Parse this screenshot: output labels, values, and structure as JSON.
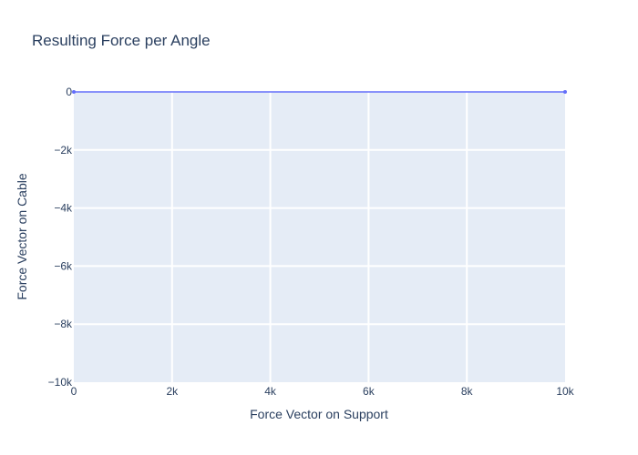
{
  "chart_data": {
    "type": "line",
    "title": "Resulting Force per Angle",
    "xlabel": "Force Vector on Support",
    "ylabel": "Force Vector on Cable",
    "xlim": [
      0,
      10000
    ],
    "ylim": [
      -10000,
      0
    ],
    "x_ticks": [
      {
        "value": 0,
        "label": "0"
      },
      {
        "value": 2000,
        "label": "2k"
      },
      {
        "value": 4000,
        "label": "4k"
      },
      {
        "value": 6000,
        "label": "6k"
      },
      {
        "value": 8000,
        "label": "8k"
      },
      {
        "value": 10000,
        "label": "10k"
      }
    ],
    "y_ticks": [
      {
        "value": 0,
        "label": "0"
      },
      {
        "value": -2000,
        "label": "−2k"
      },
      {
        "value": -4000,
        "label": "−4k"
      },
      {
        "value": -6000,
        "label": "−6k"
      },
      {
        "value": -8000,
        "label": "−8k"
      },
      {
        "value": -10000,
        "label": "−10k"
      }
    ],
    "grid": true,
    "series": [
      {
        "color": "#636efa",
        "x": [
          0,
          10000
        ],
        "y": [
          0,
          0
        ]
      }
    ]
  },
  "colors": {
    "plot_bg": "#e5ecf6",
    "grid": "#ffffff",
    "text": "#2a3f5f"
  }
}
